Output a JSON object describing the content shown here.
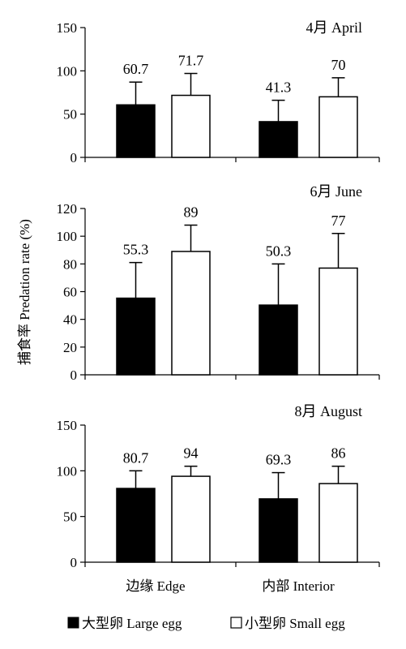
{
  "chart_data": [
    {
      "type": "bar",
      "title": "4月 April",
      "categories": [
        "边缘 Edge",
        "内部 Interior"
      ],
      "ylim": [
        0,
        150
      ],
      "yticks": [
        0,
        50,
        100,
        150
      ],
      "series": [
        {
          "name": "大型卵 Large egg",
          "color": "#000000",
          "values": [
            60.7,
            41.3
          ],
          "error_upper": [
            87,
            66
          ]
        },
        {
          "name": "小型卵 Small egg",
          "color": "#ffffff",
          "values": [
            71.7,
            70
          ],
          "error_upper": [
            97,
            92
          ]
        }
      ],
      "data_labels": [
        "60.7",
        "71.7",
        "41.3",
        "70"
      ]
    },
    {
      "type": "bar",
      "title": "6月 June",
      "categories": [
        "边缘 Edge",
        "内部 Interior"
      ],
      "ylim": [
        0,
        120
      ],
      "yticks": [
        0,
        20,
        40,
        60,
        80,
        100,
        120
      ],
      "series": [
        {
          "name": "大型卵 Large egg",
          "color": "#000000",
          "values": [
            55.3,
            50.3
          ],
          "error_upper": [
            81,
            80
          ]
        },
        {
          "name": "小型卵 Small egg",
          "color": "#ffffff",
          "values": [
            89,
            77
          ],
          "error_upper": [
            108,
            102
          ]
        }
      ],
      "data_labels": [
        "55.3",
        "89",
        "50.3",
        "77"
      ]
    },
    {
      "type": "bar",
      "title": "8月 August",
      "categories": [
        "边缘 Edge",
        "内部 Interior"
      ],
      "ylim": [
        0,
        150
      ],
      "yticks": [
        0,
        50,
        100,
        150
      ],
      "series": [
        {
          "name": "大型卵 Large egg",
          "color": "#000000",
          "values": [
            80.7,
            69.3
          ],
          "error_upper": [
            100,
            98
          ]
        },
        {
          "name": "小型卵 Small egg",
          "color": "#ffffff",
          "values": [
            94,
            86
          ],
          "error_upper": [
            105,
            105
          ]
        }
      ],
      "data_labels": [
        "80.7",
        "94",
        "69.3",
        "86"
      ]
    }
  ],
  "ylabel": "捕食率 Predation rate (%)",
  "x_categories": [
    "边缘 Edge",
    "内部 Interior"
  ],
  "legend": [
    {
      "label": "大型卵 Large egg",
      "color": "#000000"
    },
    {
      "label": "小型卵 Small egg",
      "color": "#ffffff"
    }
  ]
}
